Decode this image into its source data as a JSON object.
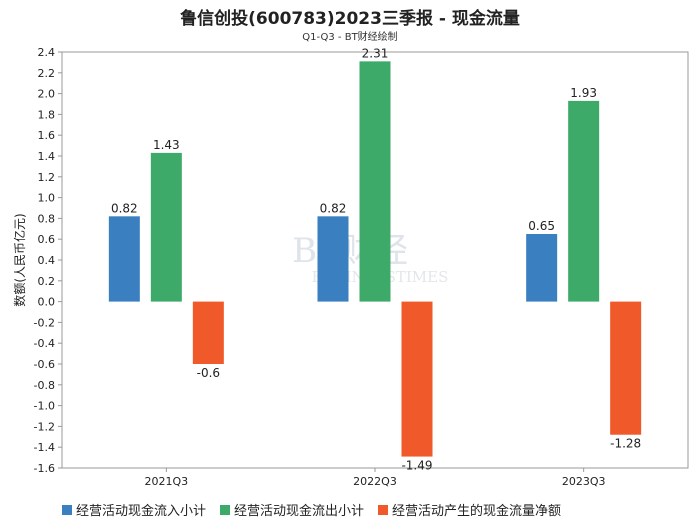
{
  "chart_data": {
    "type": "bar",
    "title": "鲁信创投(600783)2023三季报 - 现金流量",
    "subtitle": "Q1-Q3 - BT财经绘制",
    "ylabel": "数额(人民币亿元)",
    "xlabel": "",
    "categories": [
      "2021Q3",
      "2022Q3",
      "2023Q3"
    ],
    "ylim": [
      -1.6,
      2.4
    ],
    "yticks": [
      2.4,
      2.2,
      2.0,
      1.8,
      1.6,
      1.4,
      1.2,
      1.0,
      0.8,
      0.6,
      0.4,
      0.2,
      0.0,
      -0.2,
      -0.4,
      -0.6,
      -0.8,
      -1.0,
      -1.2,
      -1.4,
      -1.6
    ],
    "ytick_labels": [
      "2.4",
      "2.2",
      "2.0",
      "1.8",
      "1.6",
      "1.4",
      "1.2",
      "1.0",
      "0.8",
      "0.6",
      "0.4",
      "0.2",
      "0.0",
      "-0.2",
      "-0.4",
      "-0.6",
      "-0.8",
      "-1.0",
      "-1.2",
      "-1.4",
      "-1.6"
    ],
    "grid": false,
    "legend_position": "bottom",
    "series": [
      {
        "name": "经营活动现金流入小计",
        "color": "#3a7fc0",
        "values": [
          0.82,
          0.82,
          0.65
        ],
        "labels": [
          "0.82",
          "0.82",
          "0.65"
        ]
      },
      {
        "name": "经营活动现金流出小计",
        "color": "#3daa6a",
        "values": [
          1.43,
          2.31,
          1.93
        ],
        "labels": [
          "1.43",
          "2.31",
          "1.93"
        ]
      },
      {
        "name": "经营活动产生的现金流量净额",
        "color": "#f0592a",
        "values": [
          -0.6,
          -1.49,
          -1.28
        ],
        "labels": [
          "-0.6",
          "-1.49",
          "-1.28"
        ]
      }
    ]
  },
  "watermark": {
    "text_main": "BT财经",
    "text_sub": "BUSINESSTIMES"
  }
}
